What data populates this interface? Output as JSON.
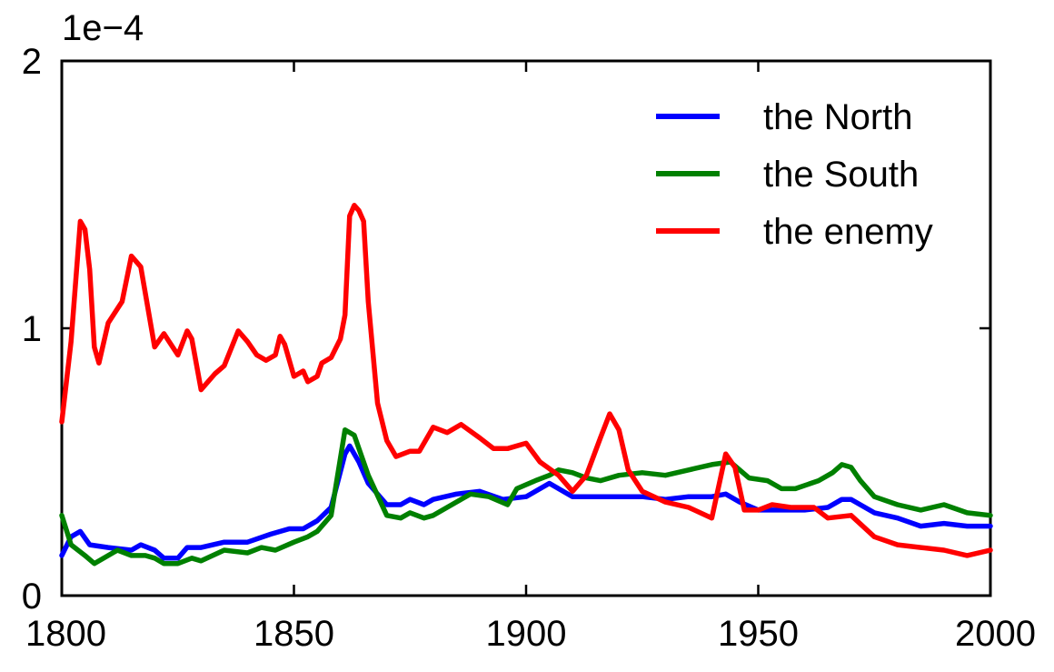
{
  "chart_data": {
    "type": "line",
    "title": "",
    "xlabel": "",
    "ylabel": "",
    "y_multiplier_label": "1e−4",
    "xlim": [
      1800,
      2000
    ],
    "ylim": [
      0,
      2
    ],
    "x_ticks": [
      1800,
      1850,
      1900,
      1950,
      2000
    ],
    "y_ticks": [
      0,
      1,
      2
    ],
    "x_tick_labels": [
      "1800",
      "1850",
      "1900",
      "1950",
      "2000"
    ],
    "y_tick_labels": [
      "0",
      "1",
      "2"
    ],
    "grid": false,
    "legend_position": "top-right",
    "series": [
      {
        "name": "the North",
        "color": "#0000ff",
        "points": [
          [
            1800,
            0.15
          ],
          [
            1802,
            0.22
          ],
          [
            1804,
            0.24
          ],
          [
            1806,
            0.19
          ],
          [
            1810,
            0.18
          ],
          [
            1815,
            0.17
          ],
          [
            1817,
            0.19
          ],
          [
            1820,
            0.17
          ],
          [
            1822,
            0.14
          ],
          [
            1825,
            0.14
          ],
          [
            1827,
            0.18
          ],
          [
            1830,
            0.18
          ],
          [
            1835,
            0.2
          ],
          [
            1840,
            0.2
          ],
          [
            1845,
            0.23
          ],
          [
            1849,
            0.25
          ],
          [
            1852,
            0.25
          ],
          [
            1855,
            0.28
          ],
          [
            1858,
            0.33
          ],
          [
            1861,
            0.53
          ],
          [
            1862,
            0.56
          ],
          [
            1864,
            0.5
          ],
          [
            1866,
            0.42
          ],
          [
            1870,
            0.34
          ],
          [
            1873,
            0.34
          ],
          [
            1875,
            0.36
          ],
          [
            1878,
            0.34
          ],
          [
            1880,
            0.36
          ],
          [
            1885,
            0.38
          ],
          [
            1890,
            0.39
          ],
          [
            1895,
            0.36
          ],
          [
            1900,
            0.37
          ],
          [
            1905,
            0.42
          ],
          [
            1910,
            0.37
          ],
          [
            1915,
            0.37
          ],
          [
            1920,
            0.37
          ],
          [
            1925,
            0.37
          ],
          [
            1930,
            0.36
          ],
          [
            1935,
            0.37
          ],
          [
            1940,
            0.37
          ],
          [
            1943,
            0.38
          ],
          [
            1946,
            0.35
          ],
          [
            1950,
            0.32
          ],
          [
            1955,
            0.32
          ],
          [
            1960,
            0.32
          ],
          [
            1965,
            0.33
          ],
          [
            1968,
            0.36
          ],
          [
            1970,
            0.36
          ],
          [
            1975,
            0.31
          ],
          [
            1980,
            0.29
          ],
          [
            1985,
            0.26
          ],
          [
            1990,
            0.27
          ],
          [
            1995,
            0.26
          ],
          [
            2000,
            0.26
          ]
        ]
      },
      {
        "name": "the South",
        "color": "#008000",
        "points": [
          [
            1800,
            0.3
          ],
          [
            1802,
            0.19
          ],
          [
            1805,
            0.15
          ],
          [
            1807,
            0.12
          ],
          [
            1810,
            0.15
          ],
          [
            1812,
            0.17
          ],
          [
            1815,
            0.15
          ],
          [
            1818,
            0.15
          ],
          [
            1820,
            0.14
          ],
          [
            1822,
            0.12
          ],
          [
            1825,
            0.12
          ],
          [
            1828,
            0.14
          ],
          [
            1830,
            0.13
          ],
          [
            1835,
            0.17
          ],
          [
            1840,
            0.16
          ],
          [
            1843,
            0.18
          ],
          [
            1846,
            0.17
          ],
          [
            1850,
            0.2
          ],
          [
            1853,
            0.22
          ],
          [
            1855,
            0.24
          ],
          [
            1858,
            0.3
          ],
          [
            1861,
            0.62
          ],
          [
            1863,
            0.6
          ],
          [
            1866,
            0.45
          ],
          [
            1870,
            0.3
          ],
          [
            1873,
            0.29
          ],
          [
            1875,
            0.31
          ],
          [
            1878,
            0.29
          ],
          [
            1880,
            0.3
          ],
          [
            1885,
            0.35
          ],
          [
            1888,
            0.38
          ],
          [
            1892,
            0.37
          ],
          [
            1896,
            0.34
          ],
          [
            1898,
            0.4
          ],
          [
            1902,
            0.43
          ],
          [
            1905,
            0.45
          ],
          [
            1907,
            0.47
          ],
          [
            1910,
            0.46
          ],
          [
            1913,
            0.44
          ],
          [
            1916,
            0.43
          ],
          [
            1920,
            0.45
          ],
          [
            1925,
            0.46
          ],
          [
            1930,
            0.45
          ],
          [
            1935,
            0.47
          ],
          [
            1940,
            0.49
          ],
          [
            1944,
            0.5
          ],
          [
            1948,
            0.44
          ],
          [
            1952,
            0.43
          ],
          [
            1955,
            0.4
          ],
          [
            1958,
            0.4
          ],
          [
            1963,
            0.43
          ],
          [
            1966,
            0.46
          ],
          [
            1968,
            0.49
          ],
          [
            1970,
            0.48
          ],
          [
            1972,
            0.43
          ],
          [
            1975,
            0.37
          ],
          [
            1980,
            0.34
          ],
          [
            1985,
            0.32
          ],
          [
            1990,
            0.34
          ],
          [
            1995,
            0.31
          ],
          [
            2000,
            0.3
          ]
        ]
      },
      {
        "name": "the enemy",
        "color": "#ff0000",
        "points": [
          [
            1800,
            0.65
          ],
          [
            1802,
            0.95
          ],
          [
            1804,
            1.4
          ],
          [
            1805,
            1.37
          ],
          [
            1806,
            1.22
          ],
          [
            1807,
            0.93
          ],
          [
            1808,
            0.87
          ],
          [
            1810,
            1.02
          ],
          [
            1813,
            1.1
          ],
          [
            1815,
            1.27
          ],
          [
            1817,
            1.23
          ],
          [
            1820,
            0.93
          ],
          [
            1822,
            0.98
          ],
          [
            1825,
            0.9
          ],
          [
            1827,
            0.99
          ],
          [
            1828,
            0.96
          ],
          [
            1830,
            0.77
          ],
          [
            1833,
            0.83
          ],
          [
            1835,
            0.86
          ],
          [
            1838,
            0.99
          ],
          [
            1840,
            0.95
          ],
          [
            1842,
            0.9
          ],
          [
            1844,
            0.88
          ],
          [
            1846,
            0.9
          ],
          [
            1847,
            0.97
          ],
          [
            1848,
            0.94
          ],
          [
            1850,
            0.82
          ],
          [
            1852,
            0.84
          ],
          [
            1853,
            0.8
          ],
          [
            1855,
            0.82
          ],
          [
            1856,
            0.87
          ],
          [
            1858,
            0.89
          ],
          [
            1860,
            0.96
          ],
          [
            1861,
            1.05
          ],
          [
            1862,
            1.42
          ],
          [
            1863,
            1.46
          ],
          [
            1864,
            1.44
          ],
          [
            1865,
            1.4
          ],
          [
            1866,
            1.1
          ],
          [
            1868,
            0.72
          ],
          [
            1870,
            0.58
          ],
          [
            1872,
            0.52
          ],
          [
            1875,
            0.54
          ],
          [
            1877,
            0.54
          ],
          [
            1880,
            0.63
          ],
          [
            1883,
            0.61
          ],
          [
            1886,
            0.64
          ],
          [
            1890,
            0.59
          ],
          [
            1893,
            0.55
          ],
          [
            1896,
            0.55
          ],
          [
            1900,
            0.57
          ],
          [
            1903,
            0.5
          ],
          [
            1907,
            0.45
          ],
          [
            1910,
            0.39
          ],
          [
            1913,
            0.45
          ],
          [
            1916,
            0.59
          ],
          [
            1918,
            0.68
          ],
          [
            1920,
            0.62
          ],
          [
            1922,
            0.47
          ],
          [
            1925,
            0.39
          ],
          [
            1930,
            0.35
          ],
          [
            1935,
            0.33
          ],
          [
            1940,
            0.29
          ],
          [
            1943,
            0.53
          ],
          [
            1945,
            0.48
          ],
          [
            1947,
            0.32
          ],
          [
            1950,
            0.32
          ],
          [
            1953,
            0.34
          ],
          [
            1957,
            0.33
          ],
          [
            1962,
            0.33
          ],
          [
            1965,
            0.29
          ],
          [
            1970,
            0.3
          ],
          [
            1975,
            0.22
          ],
          [
            1980,
            0.19
          ],
          [
            1985,
            0.18
          ],
          [
            1990,
            0.17
          ],
          [
            1995,
            0.15
          ],
          [
            2000,
            0.17
          ]
        ]
      }
    ]
  }
}
